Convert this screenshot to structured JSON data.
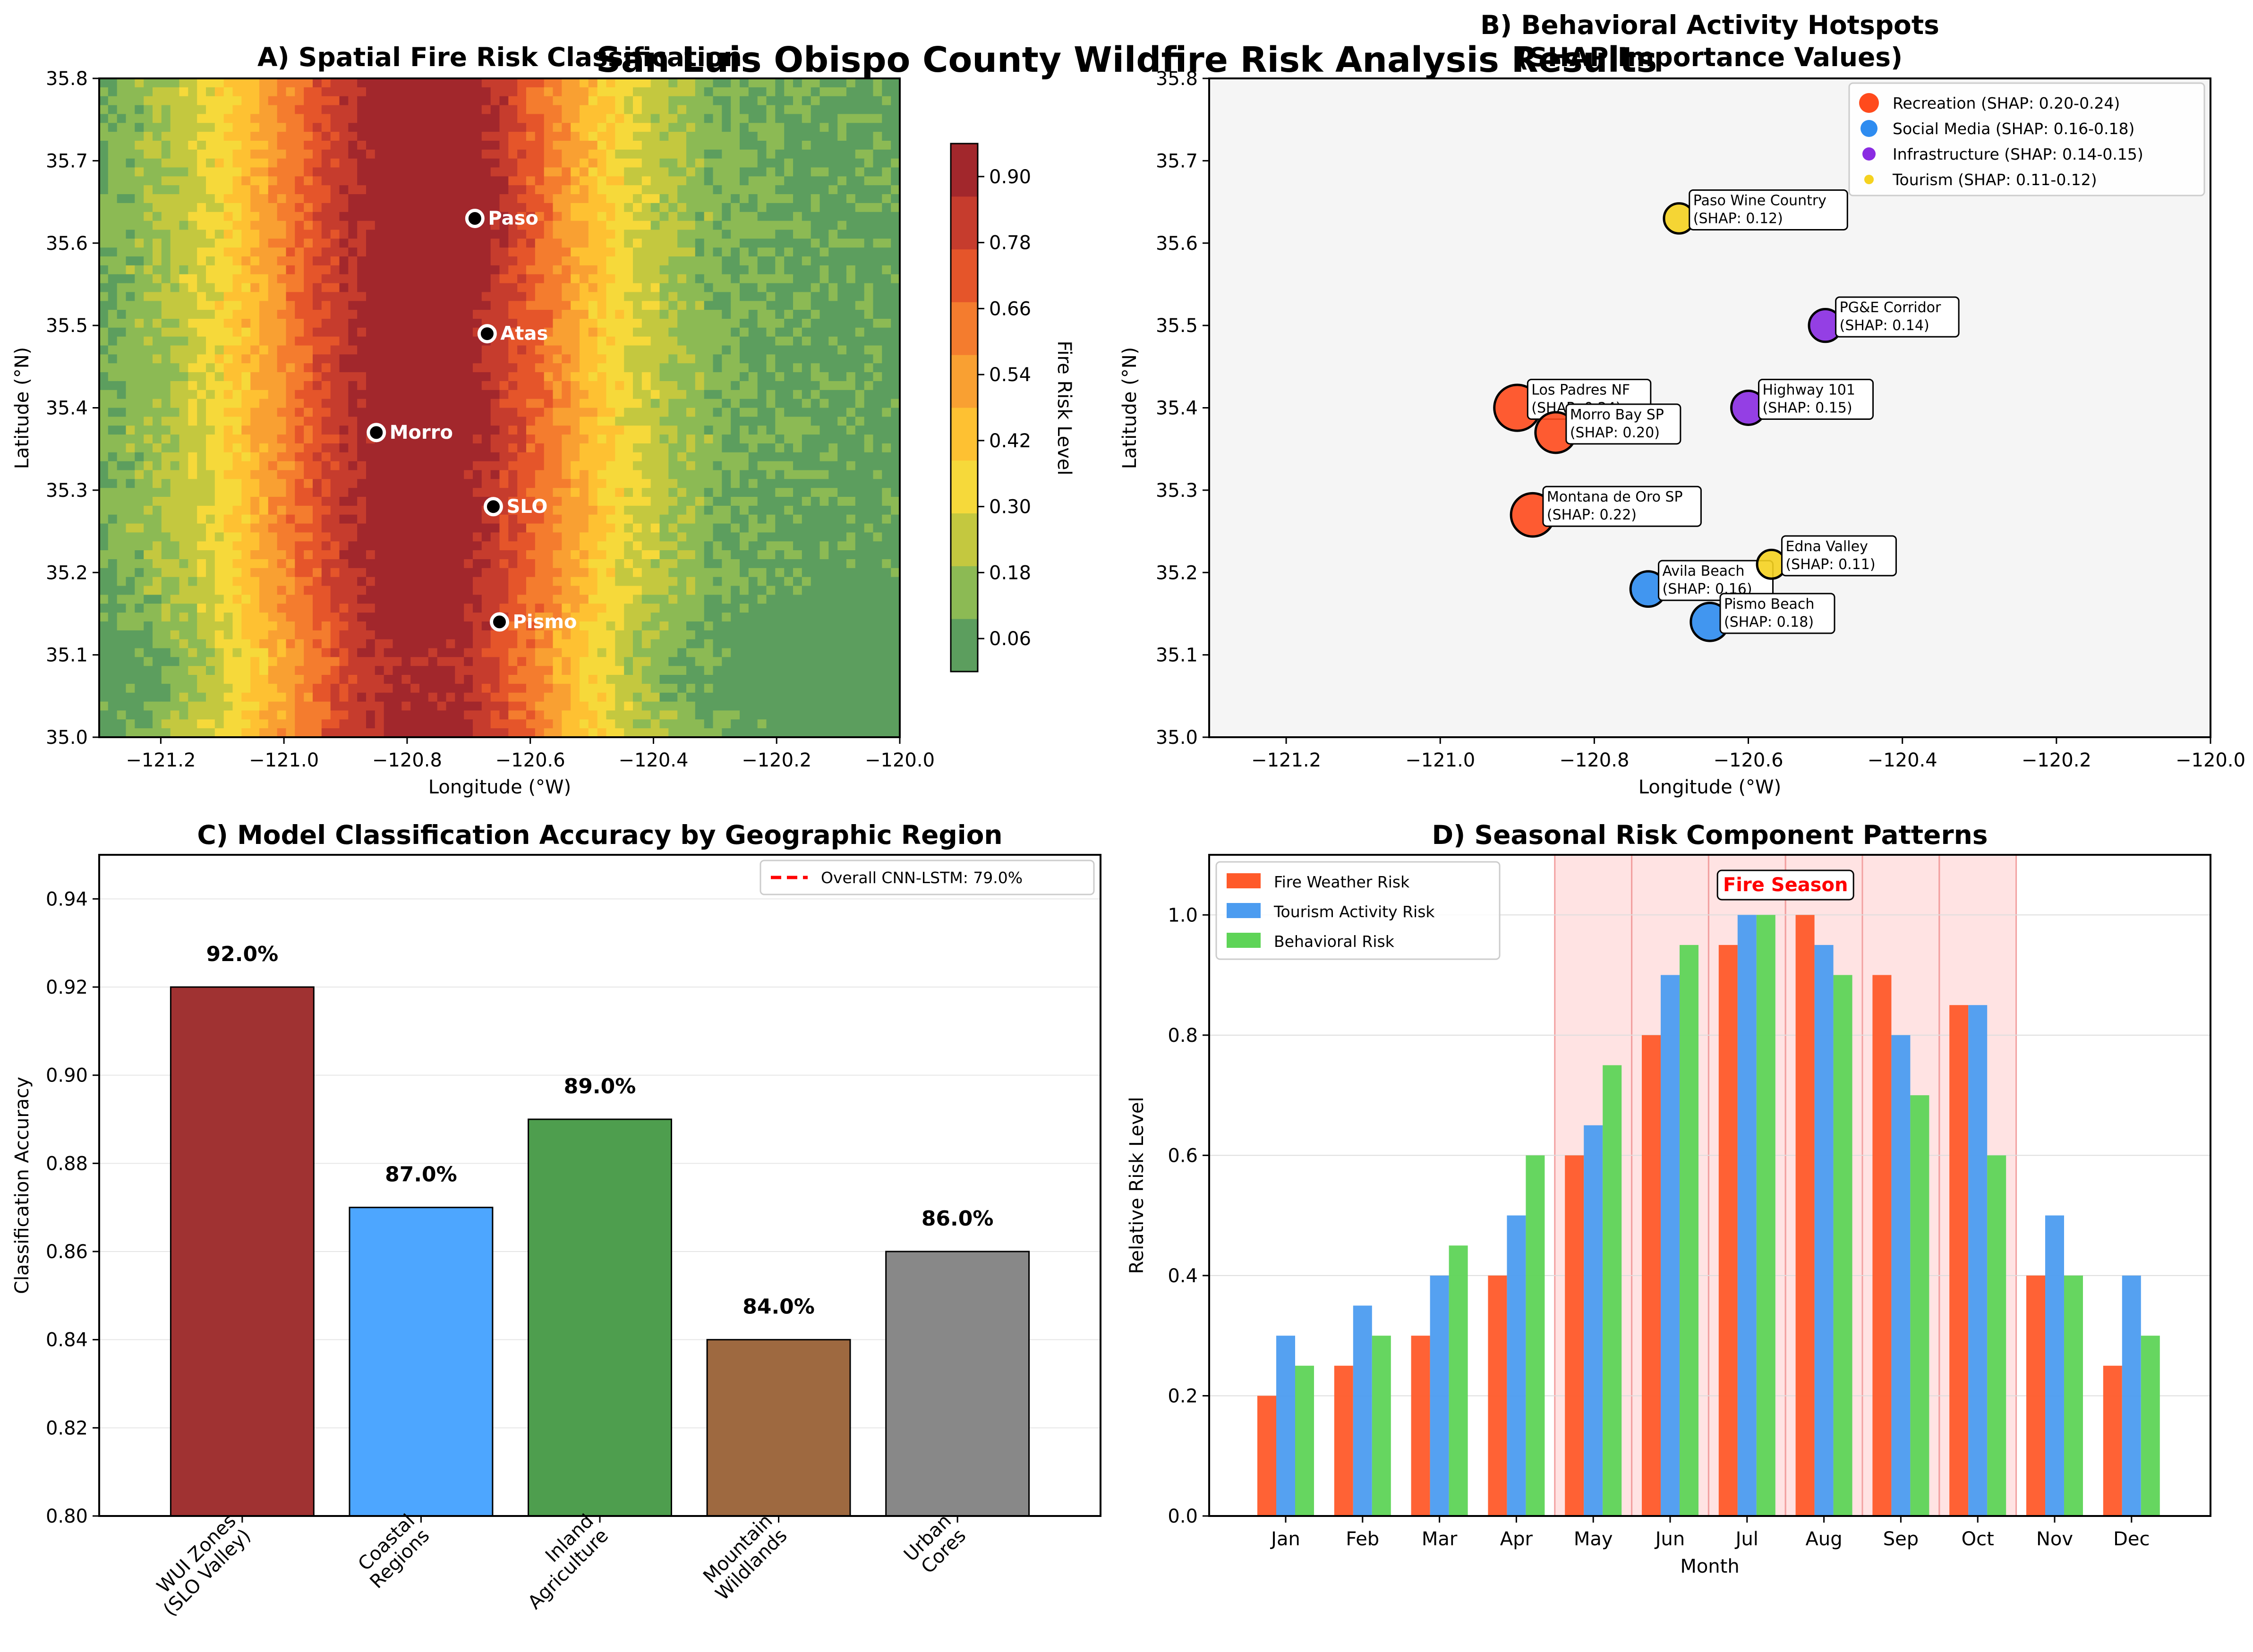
{
  "figure": {
    "suptitle": "San Luis Obispo County Wildfire Risk Analysis Results"
  },
  "chart_data": [
    {
      "id": "A",
      "type": "heatmap",
      "title": "A) Spatial Fire Risk Classification",
      "xlabel": "Longitude (°W)",
      "ylabel": "Latitude (°N)",
      "xlim": [
        -121.3,
        -120.0
      ],
      "ylim": [
        35.0,
        35.8
      ],
      "xticks": [
        -121.2,
        -121.0,
        -120.8,
        -120.6,
        -120.4,
        -120.2,
        -120.0
      ],
      "xtick_labels": [
        "−121.2",
        "−121.0",
        "−120.8",
        "−120.6",
        "−120.4",
        "−120.2",
        "−120.0"
      ],
      "yticks": [
        35.0,
        35.1,
        35.2,
        35.3,
        35.4,
        35.5,
        35.6,
        35.7,
        35.8
      ],
      "ytick_labels": [
        "35.0",
        "35.1",
        "35.2",
        "35.3",
        "35.4",
        "35.5",
        "35.6",
        "35.7",
        "35.8"
      ],
      "colorbar": {
        "label": "Fire Risk Level",
        "range": [
          0.0,
          0.96
        ],
        "ticks": [
          0.06,
          0.18,
          0.3,
          0.42,
          0.54,
          0.66,
          0.78,
          0.9
        ],
        "tick_labels": [
          "0.06",
          "0.18",
          "0.30",
          "0.42",
          "0.54",
          "0.66",
          "0.78",
          "0.90"
        ],
        "colormap": [
          "#5c9e5e",
          "#8cba54",
          "#c4c83f",
          "#f6d93a",
          "#fec132",
          "#f9a032",
          "#f47c2e",
          "#e5552a",
          "#c63c2d",
          "#a2272c"
        ]
      },
      "cities": [
        {
          "name": "Paso",
          "lon": -120.69,
          "lat": 35.63
        },
        {
          "name": "Atas",
          "lon": -120.67,
          "lat": 35.49
        },
        {
          "name": "Morro",
          "lon": -120.85,
          "lat": 35.37
        },
        {
          "name": "SLO",
          "lon": -120.66,
          "lat": 35.28
        },
        {
          "name": "Pismo",
          "lon": -120.65,
          "lat": 35.14
        }
      ]
    },
    {
      "id": "B",
      "type": "scatter",
      "title_lines": [
        "B) Behavioral Activity Hotspots",
        "(SHAP Importance Values)"
      ],
      "xlabel": "Longitude (°W)",
      "ylabel": "Latitude (°N)",
      "xlim": [
        -121.3,
        -120.0
      ],
      "ylim": [
        35.0,
        35.8
      ],
      "xticks": [
        -121.2,
        -121.0,
        -120.8,
        -120.6,
        -120.4,
        -120.2,
        -120.0
      ],
      "xtick_labels": [
        "−121.2",
        "−121.0",
        "−120.8",
        "−120.6",
        "−120.4",
        "−120.2",
        "−120.0"
      ],
      "yticks": [
        35.0,
        35.1,
        35.2,
        35.3,
        35.4,
        35.5,
        35.6,
        35.7,
        35.8
      ],
      "ytick_labels": [
        "35.0",
        "35.1",
        "35.2",
        "35.3",
        "35.4",
        "35.5",
        "35.6",
        "35.7",
        "35.8"
      ],
      "legend_position": "top-right",
      "series": [
        {
          "name": "Recreation (SHAP: 0.20-0.24)",
          "color": "#ff4a1c",
          "points": [
            {
              "label": "Los Padres NF",
              "shap_text": "(SHAP: 0.24)",
              "lon": -120.9,
              "lat": 35.4,
              "shap": 0.24
            },
            {
              "label": "Morro Bay SP",
              "shap_text": "(SHAP: 0.20)",
              "lon": -120.85,
              "lat": 35.37,
              "shap": 0.2
            },
            {
              "label": "Montana de Oro SP",
              "shap_text": "(SHAP: 0.22)",
              "lon": -120.88,
              "lat": 35.27,
              "shap": 0.22
            }
          ]
        },
        {
          "name": "Social Media (SHAP: 0.16-0.18)",
          "color": "#2e8cf0",
          "points": [
            {
              "label": "Avila Beach",
              "shap_text": "(SHAP: 0.16)",
              "lon": -120.73,
              "lat": 35.18,
              "shap": 0.16
            },
            {
              "label": "Pismo Beach",
              "shap_text": "(SHAP: 0.18)",
              "lon": -120.65,
              "lat": 35.14,
              "shap": 0.18
            }
          ]
        },
        {
          "name": "Infrastructure (SHAP: 0.14-0.15)",
          "color": "#8a2be2",
          "points": [
            {
              "label": "PG&E Corridor",
              "shap_text": "(SHAP: 0.14)",
              "lon": -120.5,
              "lat": 35.5,
              "shap": 0.14
            },
            {
              "label": "Highway 101",
              "shap_text": "(SHAP: 0.15)",
              "lon": -120.6,
              "lat": 35.4,
              "shap": 0.15
            }
          ]
        },
        {
          "name": "Tourism (SHAP: 0.11-0.12)",
          "color": "#f5d21f",
          "points": [
            {
              "label": "Paso Wine Country",
              "shap_text": "(SHAP: 0.12)",
              "lon": -120.69,
              "lat": 35.63,
              "shap": 0.12
            },
            {
              "label": "Edna Valley",
              "shap_text": "(SHAP: 0.11)",
              "lon": -120.57,
              "lat": 35.21,
              "shap": 0.11
            }
          ]
        }
      ]
    },
    {
      "id": "C",
      "type": "bar",
      "title": "C) Model Classification Accuracy by Geographic Region",
      "ylabel": "Classification Accuracy",
      "ylim": [
        0.8,
        0.95
      ],
      "yticks": [
        0.8,
        0.82,
        0.84,
        0.86,
        0.88,
        0.9,
        0.92,
        0.94
      ],
      "ytick_labels": [
        "0.80",
        "0.82",
        "0.84",
        "0.86",
        "0.88",
        "0.90",
        "0.92",
        "0.94"
      ],
      "categories": [
        [
          "WUI Zones",
          "(SLO Valley)"
        ],
        [
          "Coastal",
          "Regions"
        ],
        [
          "Inland",
          "Agriculture"
        ],
        [
          "Mountain",
          "Wildlands"
        ],
        [
          "Urban",
          "Cores"
        ]
      ],
      "values": [
        0.92,
        0.87,
        0.89,
        0.84,
        0.86
      ],
      "value_labels": [
        "92.0%",
        "87.0%",
        "89.0%",
        "84.0%",
        "86.0%"
      ],
      "colors": [
        "#a03232",
        "#4da6ff",
        "#4e9e4e",
        "#9e6940",
        "#888888"
      ],
      "reference_line": {
        "value": 0.79,
        "label": "Overall CNN-LSTM: 79.0%",
        "color": "#ff0000"
      },
      "legend_position": "top-right"
    },
    {
      "id": "D",
      "type": "bar",
      "title": "D) Seasonal Risk Component Patterns",
      "xlabel": "Month",
      "ylabel": "Relative Risk Level",
      "ylim": [
        0.0,
        1.1
      ],
      "yticks": [
        0.0,
        0.2,
        0.4,
        0.6,
        0.8,
        1.0
      ],
      "ytick_labels": [
        "0.0",
        "0.2",
        "0.4",
        "0.6",
        "0.8",
        "1.0"
      ],
      "categories": [
        "Jan",
        "Feb",
        "Mar",
        "Apr",
        "May",
        "Jun",
        "Jul",
        "Aug",
        "Sep",
        "Oct",
        "Nov",
        "Dec"
      ],
      "series": [
        {
          "name": "Fire Weather Risk",
          "color": "#ff5a2a",
          "values": [
            0.2,
            0.25,
            0.3,
            0.4,
            0.6,
            0.8,
            0.95,
            1.0,
            0.9,
            0.85,
            0.4,
            0.25
          ]
        },
        {
          "name": "Tourism Activity Risk",
          "color": "#4c9cf0",
          "values": [
            0.3,
            0.35,
            0.4,
            0.5,
            0.65,
            0.9,
            1.0,
            0.95,
            0.8,
            0.85,
            0.5,
            0.4
          ]
        },
        {
          "name": "Behavioral Risk",
          "color": "#5ed457",
          "values": [
            0.25,
            0.3,
            0.45,
            0.6,
            0.75,
            0.95,
            1.0,
            0.9,
            0.7,
            0.6,
            0.4,
            0.3
          ]
        }
      ],
      "fire_season": {
        "label": "Fire Season",
        "months": [
          "May",
          "Jun",
          "Jul",
          "Aug",
          "Sep",
          "Oct"
        ],
        "color": "#ff9999"
      },
      "legend_position": "top-left"
    }
  ]
}
